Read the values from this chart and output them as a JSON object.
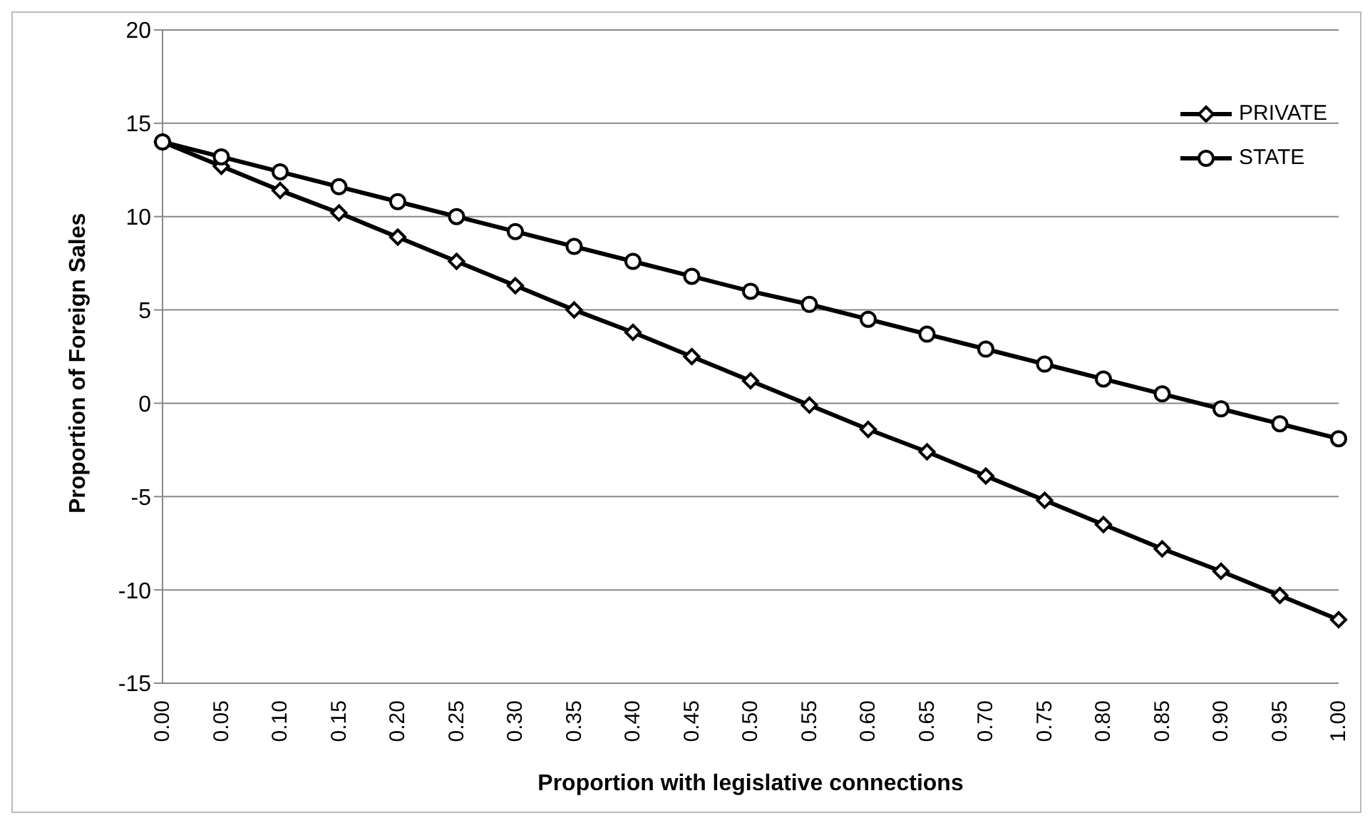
{
  "chart_data": {
    "type": "line",
    "xlabel": "Proportion with legislative connections",
    "ylabel": "Proportion of Foreign Sales",
    "categories": [
      "0.00",
      "0.05",
      "0.10",
      "0.15",
      "0.20",
      "0.25",
      "0.30",
      "0.35",
      "0.40",
      "0.45",
      "0.50",
      "0.55",
      "0.60",
      "0.65",
      "0.70",
      "0.75",
      "0.80",
      "0.85",
      "0.90",
      "0.95",
      "1.00"
    ],
    "series": [
      {
        "name": "PRIVATE",
        "color": "#000000",
        "marker": "diamond",
        "values": [
          14,
          12.7,
          11.4,
          10.2,
          8.9,
          7.6,
          6.3,
          5.0,
          3.8,
          2.5,
          1.2,
          -0.1,
          -1.4,
          -2.6,
          -3.9,
          -5.2,
          -6.5,
          -7.8,
          -9.0,
          -10.3,
          -11.6
        ]
      },
      {
        "name": "STATE",
        "color": "#000000",
        "marker": "circle",
        "values": [
          14,
          13.2,
          12.4,
          11.6,
          10.8,
          10.0,
          9.2,
          8.4,
          7.6,
          6.8,
          6.0,
          5.3,
          4.5,
          3.7,
          2.9,
          2.1,
          1.3,
          0.5,
          -0.3,
          -1.1,
          -1.9
        ]
      }
    ],
    "ylim": [
      -15,
      20
    ],
    "yticks": [
      -15,
      -10,
      -5,
      0,
      5,
      10,
      15,
      20
    ],
    "grid": "y",
    "legend": "top right",
    "line_style": "solid"
  }
}
